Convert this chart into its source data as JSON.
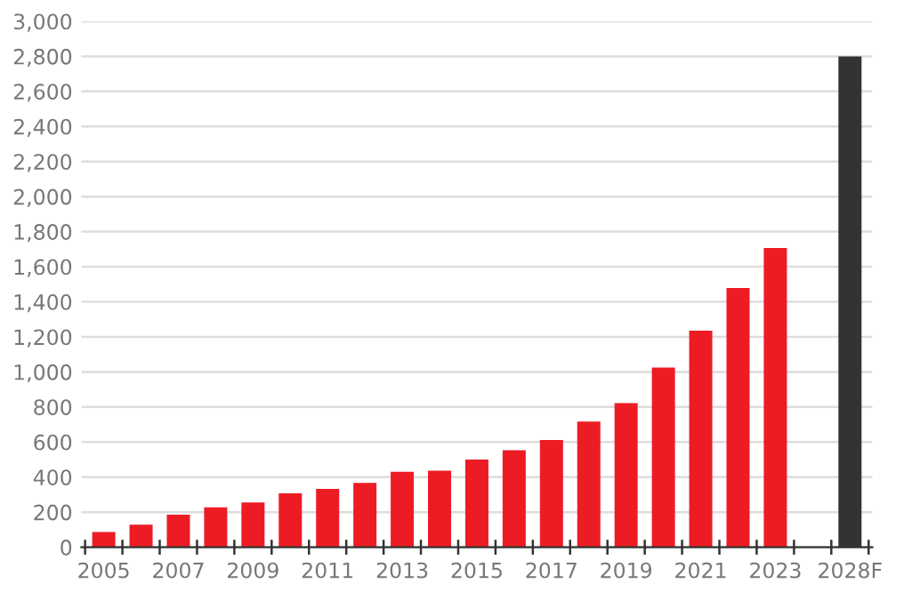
{
  "chart_data": {
    "type": "bar",
    "categories": [
      "2005",
      null,
      "2007",
      null,
      "2009",
      null,
      "2011",
      null,
      "2013",
      null,
      "2015",
      null,
      "2017",
      null,
      "2019",
      null,
      "2021",
      null,
      "2023",
      null,
      "2028F"
    ],
    "values": [
      87,
      129,
      186,
      227,
      255,
      307,
      332,
      367,
      430,
      437,
      500,
      553,
      612,
      717,
      822,
      1025,
      1235,
      1479,
      1707,
      null,
      2800
    ],
    "colors": [
      "#ed1c24",
      "#ed1c24",
      "#ed1c24",
      "#ed1c24",
      "#ed1c24",
      "#ed1c24",
      "#ed1c24",
      "#ed1c24",
      "#ed1c24",
      "#ed1c24",
      "#ed1c24",
      "#ed1c24",
      "#ed1c24",
      "#ed1c24",
      "#ed1c24",
      "#ed1c24",
      "#ed1c24",
      "#ed1c24",
      "#ed1c24",
      "#ed1c24",
      "#333333"
    ],
    "ylim": [
      0,
      3000
    ],
    "yticks": [
      {
        "value": 0,
        "label": "0"
      },
      {
        "value": 200,
        "label": "200"
      },
      {
        "value": 400,
        "label": "400"
      },
      {
        "value": 600,
        "label": "600"
      },
      {
        "value": 800,
        "label": "800"
      },
      {
        "value": 1000,
        "label": "1,000"
      },
      {
        "value": 1200,
        "label": "1,200"
      },
      {
        "value": 1400,
        "label": "1,400"
      },
      {
        "value": 1600,
        "label": "1,600"
      },
      {
        "value": 1800,
        "label": "1,800"
      },
      {
        "value": 2000,
        "label": "2,000"
      },
      {
        "value": 2200,
        "label": "2,200"
      },
      {
        "value": 2400,
        "label": "2,400"
      },
      {
        "value": 2600,
        "label": "2,600"
      },
      {
        "value": 2800,
        "label": "2,800"
      },
      {
        "value": 3000,
        "label": "3,000"
      }
    ],
    "grid": "y"
  }
}
